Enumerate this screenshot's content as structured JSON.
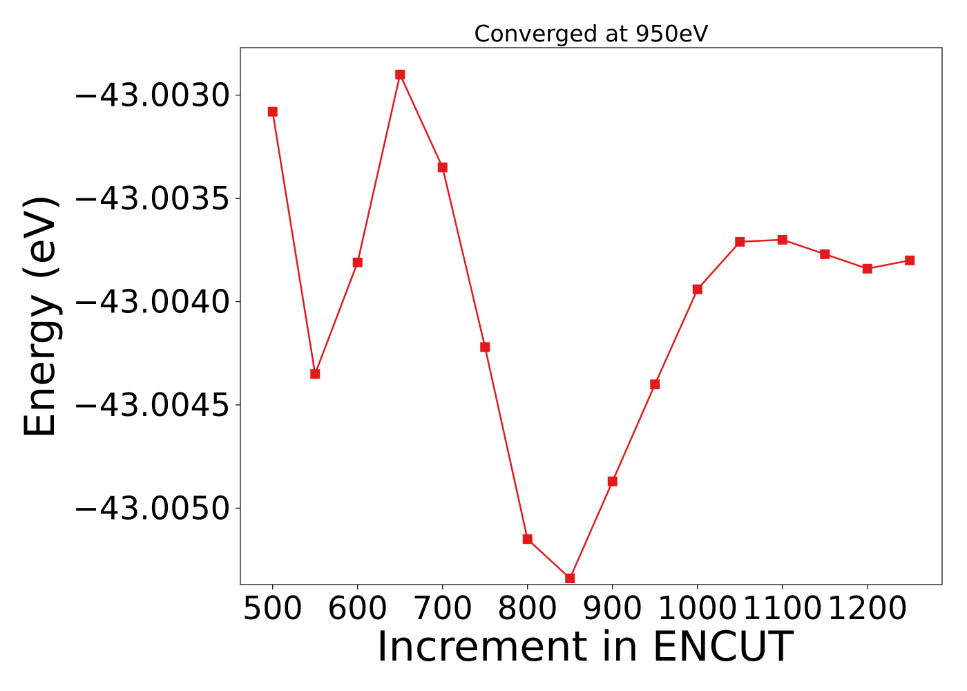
{
  "chart_data": {
    "type": "line",
    "title": "Converged at 950eV",
    "xlabel": "Increment in ENCUT",
    "ylabel": "Energy (eV)",
    "xlim": [
      462,
      1288
    ],
    "ylim": [
      -43.00537,
      -43.00277
    ],
    "xticks": [
      500,
      600,
      700,
      800,
      900,
      1000,
      1100,
      1200
    ],
    "xtick_labels": [
      "500",
      "600",
      "700",
      "800",
      "900",
      "1000",
      "1100",
      "1200"
    ],
    "yticks": [
      -43.003,
      -43.0035,
      -43.004,
      -43.0045,
      -43.005
    ],
    "ytick_labels": [
      "−43.0030",
      "−43.0035",
      "−43.0040",
      "−43.0045",
      "−43.0050"
    ],
    "grid": false,
    "series": [
      {
        "color": "#e31a1c",
        "marker": "square",
        "x": [
          500,
          550,
          600,
          650,
          700,
          750,
          800,
          850,
          900,
          950,
          1000,
          1050,
          1100,
          1150,
          1200,
          1250
        ],
        "y": [
          -43.00308,
          -43.00435,
          -43.00381,
          -43.0029,
          -43.00335,
          -43.00422,
          -43.00515,
          -43.00534,
          -43.00487,
          -43.0044,
          -43.00394,
          -43.00371,
          -43.0037,
          -43.00377,
          -43.00384,
          -43.0038
        ]
      }
    ]
  }
}
